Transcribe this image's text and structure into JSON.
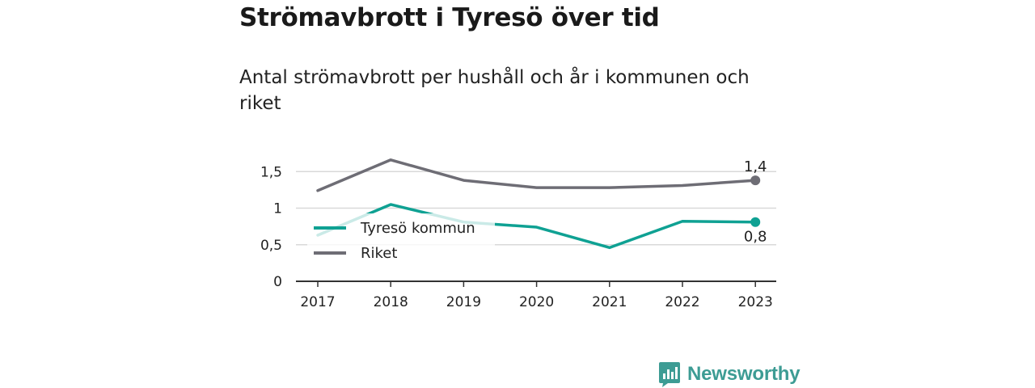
{
  "title": "Strömavbrott i Tyresö över tid",
  "subtitle": "Antal strömavbrott per hushåll och år i kommunen och riket",
  "brand": "Newsworthy",
  "colors": {
    "tyreso": "#0fa193",
    "riket": "#6e6d75",
    "axis": "#333333",
    "grid": "#d9d9d9",
    "brand": "#3d9c94"
  },
  "chart_data": {
    "type": "line",
    "categories": [
      "2017",
      "2018",
      "2019",
      "2020",
      "2021",
      "2022",
      "2023"
    ],
    "y_ticks": [
      0,
      0.5,
      1,
      1.5
    ],
    "y_tick_labels": [
      "0",
      "0,5",
      "1",
      "1,5"
    ],
    "ylim": [
      0,
      1.5
    ],
    "grid": true,
    "legend_position": "left-middle",
    "series": [
      {
        "name": "Tyresö kommun",
        "color": "#0fa193",
        "values": [
          0.63,
          1.05,
          0.81,
          0.74,
          0.46,
          0.82,
          0.81
        ],
        "end_label": "0,8"
      },
      {
        "name": "Riket",
        "color": "#6e6d75",
        "values": [
          1.24,
          1.66,
          1.38,
          1.28,
          1.28,
          1.31,
          1.38
        ],
        "end_label": "1,4"
      }
    ]
  }
}
